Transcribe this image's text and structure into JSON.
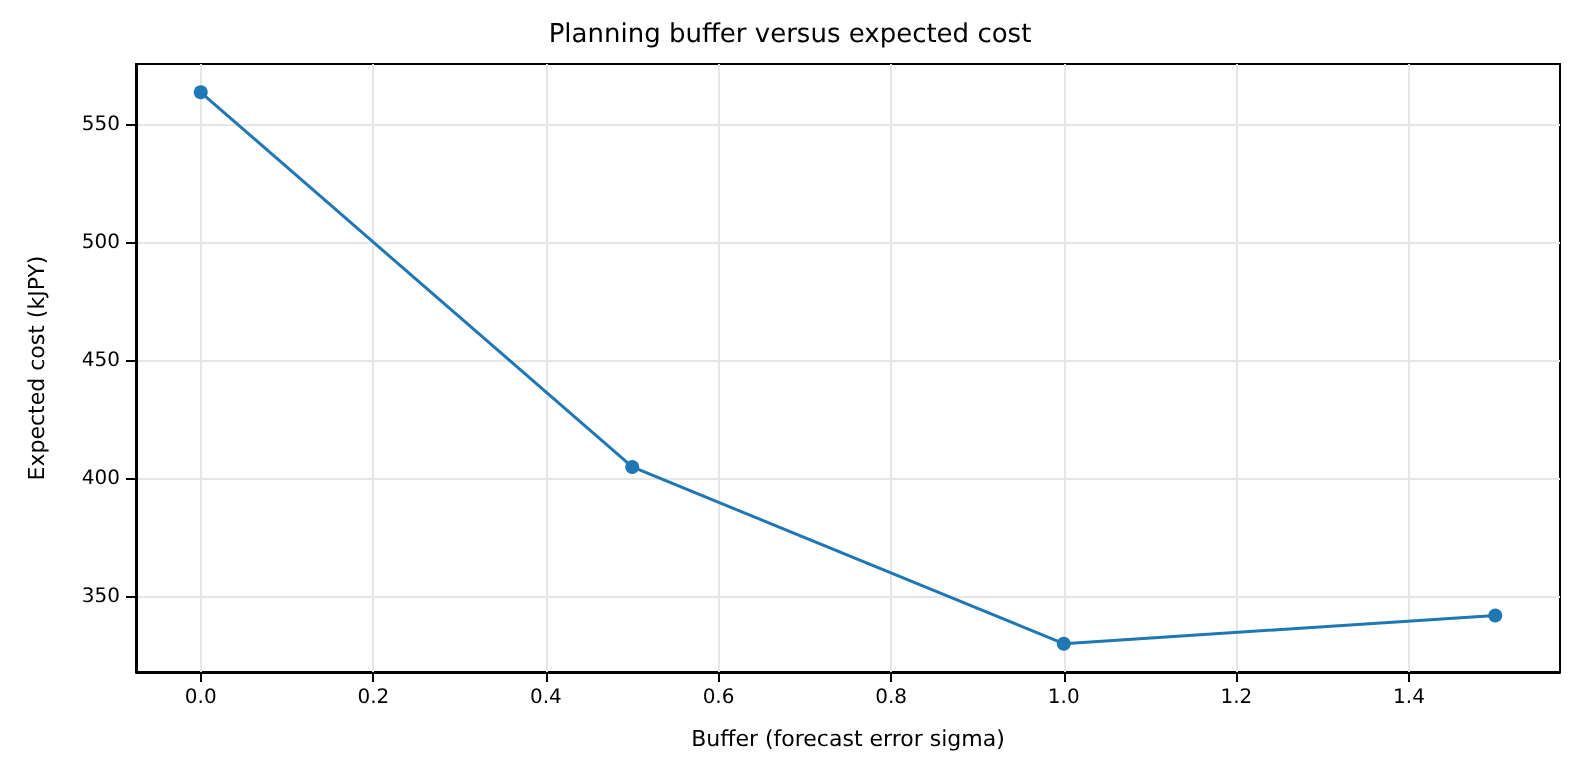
{
  "chart_data": {
    "type": "line",
    "title": "Planning buffer versus expected cost",
    "xlabel": "Buffer (forecast error sigma)",
    "ylabel": "Expected cost (kJPY)",
    "x": [
      0,
      0.5,
      1.0,
      1.5
    ],
    "series": [
      {
        "color": "#1f77b4",
        "values": [
          564,
          405,
          330,
          342
        ]
      }
    ],
    "xlim": [
      -0.075,
      1.575
    ],
    "xticks": [
      {
        "value": 0,
        "label": "0.0"
      },
      0.2,
      0.4,
      0.6,
      0.8,
      {
        "value": 1,
        "label": "1.0"
      },
      1.2,
      1.4
    ],
    "ylim": [
      318,
      576
    ],
    "yticks": [
      350,
      400,
      450,
      500,
      550
    ],
    "grid": true,
    "marker": "circle",
    "line_style": "solid"
  }
}
